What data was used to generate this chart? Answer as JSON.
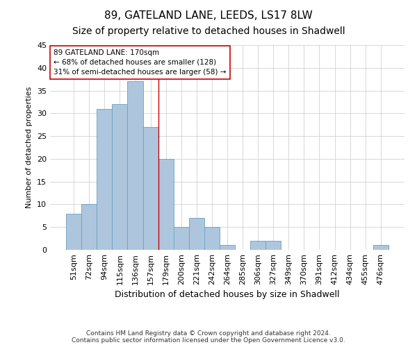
{
  "title_line1": "89, GATELAND LANE, LEEDS, LS17 8LW",
  "title_line2": "Size of property relative to detached houses in Shadwell",
  "xlabel": "Distribution of detached houses by size in Shadwell",
  "ylabel": "Number of detached properties",
  "categories": [
    "51sqm",
    "72sqm",
    "94sqm",
    "115sqm",
    "136sqm",
    "157sqm",
    "179sqm",
    "200sqm",
    "221sqm",
    "242sqm",
    "264sqm",
    "285sqm",
    "306sqm",
    "327sqm",
    "349sqm",
    "370sqm",
    "391sqm",
    "412sqm",
    "434sqm",
    "455sqm",
    "476sqm"
  ],
  "values": [
    8,
    10,
    31,
    32,
    37,
    27,
    20,
    5,
    7,
    5,
    1,
    0,
    2,
    2,
    0,
    0,
    0,
    0,
    0,
    0,
    1
  ],
  "bar_color": "#aec6dd",
  "bar_edge_color": "#6a9fc0",
  "background_color": "#ffffff",
  "grid_color": "#c8c8c8",
  "annotation_line1": "89 GATELAND LANE: 170sqm",
  "annotation_line2": "← 68% of detached houses are smaller (128)",
  "annotation_line3": "31% of semi-detached houses are larger (58) →",
  "annotation_box_color": "#ffffff",
  "annotation_box_edge_color": "#cc0000",
  "vline_x": 5.5,
  "vline_color": "#cc0000",
  "ylim": [
    0,
    45
  ],
  "yticks": [
    0,
    5,
    10,
    15,
    20,
    25,
    30,
    35,
    40,
    45
  ],
  "title1_fontsize": 11,
  "title2_fontsize": 10,
  "xlabel_fontsize": 9,
  "ylabel_fontsize": 8,
  "tick_fontsize": 8,
  "annotation_fontsize": 7.5,
  "footnote_fontsize": 6.5,
  "footnote": "Contains HM Land Registry data © Crown copyright and database right 2024.\nContains public sector information licensed under the Open Government Licence v3.0."
}
